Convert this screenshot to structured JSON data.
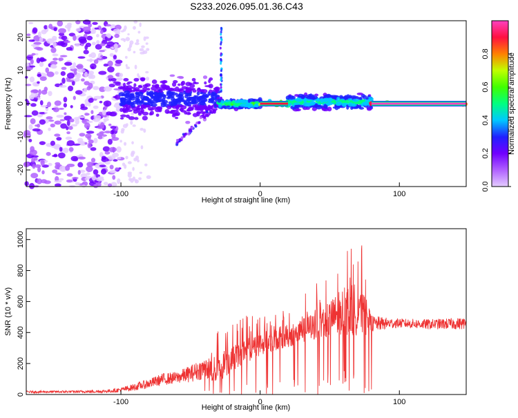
{
  "title": "S233.2026.095.01.36.C43",
  "chart_data": [
    {
      "type": "heatmap",
      "name": "spectrogram",
      "xlabel": "Height of straight line (km)",
      "ylabel": "Frequency (Hz)",
      "xlim": [
        -168,
        148
      ],
      "ylim": [
        -25,
        25
      ],
      "x_ticks": [
        -100,
        0,
        100
      ],
      "x_tick_labels": [
        "-100",
        "0",
        "100"
      ],
      "y_ticks": [
        -20,
        -10,
        0,
        10,
        20
      ],
      "y_tick_labels": [
        "-20",
        "-10",
        "0",
        "10",
        "20"
      ],
      "colorbar": {
        "label": "Normalized spectral amplitude",
        "range": [
          0,
          1
        ],
        "ticks": [
          0.0,
          0.2,
          0.4,
          0.6,
          0.8
        ],
        "tick_labels": [
          "0.0",
          "0.2",
          "0.4",
          "0.6",
          "0.8"
        ],
        "colors": [
          "#e4ccff",
          "#b060ff",
          "#7000ff",
          "#2020ff",
          "#00c8ff",
          "#00ff80",
          "#40ff00",
          "#c0ff00",
          "#ff8000",
          "#ff1040",
          "#ff40c0"
        ]
      },
      "regions": [
        {
          "desc": "broadband noise",
          "x_range": [
            -168,
            -100
          ],
          "y_range": [
            -25,
            25
          ],
          "level": 0.15
        },
        {
          "desc": "emerging line",
          "x_range": [
            -100,
            -30
          ],
          "freq": 1.5,
          "spread": 8,
          "level": 0.3
        },
        {
          "desc": "low band curve",
          "x_range": [
            -60,
            -30
          ],
          "freq_from": -12,
          "freq_to": 0,
          "level": 0.2
        },
        {
          "desc": "spike",
          "x": -28,
          "freq_range": [
            0,
            23
          ],
          "level": 0.4
        },
        {
          "desc": "line segment",
          "x_range": [
            -30,
            0
          ],
          "freq": 0,
          "spread": 2,
          "level": 0.5
        },
        {
          "desc": "line segment",
          "x_range": [
            0,
            20
          ],
          "freq": 0,
          "spread": 1,
          "level": 0.85
        },
        {
          "desc": "line segment",
          "x_range": [
            20,
            80
          ],
          "freq": 0.5,
          "spread": 3,
          "level": 0.45
        },
        {
          "desc": "stable line",
          "x_range": [
            80,
            148
          ],
          "freq": 0,
          "spread": 0.5,
          "level": 0.95
        }
      ]
    },
    {
      "type": "line",
      "name": "snr",
      "xlabel": "Height of straight line (km)",
      "ylabel": "SNR (10 * v/v)",
      "xlim": [
        -168,
        148
      ],
      "ylim": [
        0,
        1070
      ],
      "x_ticks": [
        -100,
        0,
        100
      ],
      "x_tick_labels": [
        "-100",
        "0",
        "100"
      ],
      "y_ticks": [
        0,
        200,
        400,
        600,
        800,
        1000
      ],
      "y_tick_labels": [
        "0",
        "200",
        "400",
        "600",
        "800",
        "1000"
      ],
      "line_color": "#ee3333",
      "envelope": {
        "x": [
          -168,
          -130,
          -110,
          -100,
          -90,
          -80,
          -70,
          -60,
          -50,
          -40,
          -30,
          -20,
          -10,
          0,
          10,
          20,
          30,
          40,
          50,
          60,
          70,
          75,
          80,
          90,
          100,
          120,
          148
        ],
        "low": [
          10,
          10,
          10,
          15,
          25,
          40,
          60,
          70,
          80,
          100,
          60,
          150,
          200,
          250,
          280,
          300,
          330,
          350,
          370,
          380,
          380,
          350,
          400,
          420,
          430,
          420,
          420
        ],
        "high": [
          35,
          40,
          50,
          70,
          110,
          150,
          200,
          210,
          280,
          350,
          400,
          450,
          500,
          530,
          550,
          580,
          620,
          700,
          800,
          950,
          1000,
          900,
          600,
          560,
          540,
          540,
          560
        ]
      }
    }
  ]
}
